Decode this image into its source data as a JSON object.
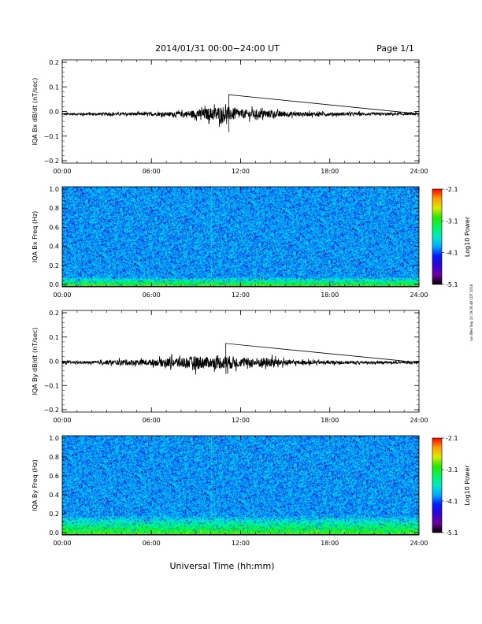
{
  "header": {
    "title": "2014/01/31  00:00−24:00 UT",
    "page": "Page 1/1"
  },
  "footer": {
    "xlabel": "Universal Time (hh:mm)",
    "stamp": "run Wed Sep 10 19:26:48 CDT 2018"
  },
  "chart_data": [
    {
      "type": "line",
      "ylabel": "IQA Bx dB/dt (nT/sec)",
      "x_ticks": [
        "00:00",
        "06:00",
        "12:00",
        "18:00",
        "24:00"
      ],
      "xlim": [
        0,
        24
      ],
      "ylim": [
        -0.2,
        0.2
      ],
      "y_ticks": [
        "0.2",
        "0.1",
        "0.0",
        "−0.1",
        "−0.2"
      ],
      "series": [
        {
          "baseline": -0.01,
          "envelope_hours": [
            0,
            2,
            4,
            6,
            7,
            8,
            9,
            10,
            10.5,
            11,
            11.5,
            12,
            13,
            14,
            15,
            16,
            18,
            20,
            24
          ],
          "envelope_amp": [
            0.008,
            0.009,
            0.01,
            0.012,
            0.013,
            0.018,
            0.03,
            0.045,
            0.055,
            0.055,
            0.042,
            0.032,
            0.03,
            0.025,
            0.02,
            0.015,
            0.012,
            0.01,
            0.008
          ],
          "peak": {
            "hour": 11.2,
            "max": 0.065,
            "min": -0.08
          }
        }
      ]
    },
    {
      "type": "heatmap",
      "ylabel": "IQA Bx Freq (Hz)",
      "x_ticks": [
        "00:00",
        "06:00",
        "12:00",
        "18:00",
        "24:00"
      ],
      "xlim": [
        0,
        24
      ],
      "ylim": [
        0,
        1
      ],
      "y_ticks": [
        "1.0",
        "0.8",
        "0.6",
        "0.4",
        "0.2",
        "0.0"
      ],
      "colorbar": {
        "label": "Log10 Power",
        "ticks": [
          "-2.1",
          "-3.1",
          "-4.1",
          "-5.1"
        ],
        "range": [
          -5.1,
          -2.1
        ]
      },
      "background_log_power": -3.9,
      "low_freq_enhancement": {
        "freq_below_hz": 0.1,
        "max_log_power": -2.7
      },
      "vertical_stripe_hour": 10
    },
    {
      "type": "line",
      "ylabel": "IQA By dB/dt (nT/sec)",
      "x_ticks": [
        "00:00",
        "06:00",
        "12:00",
        "18:00",
        "24:00"
      ],
      "xlim": [
        0,
        24
      ],
      "ylim": [
        -0.2,
        0.2
      ],
      "y_ticks": [
        "0.2",
        "0.1",
        "0.0",
        "−0.1",
        "−0.2"
      ],
      "series": [
        {
          "baseline": -0.005,
          "envelope_hours": [
            0,
            2,
            3,
            4,
            5,
            6,
            7,
            8,
            8.5,
            9,
            9.5,
            10,
            11,
            11.5,
            12,
            13,
            14,
            15,
            16,
            18,
            20,
            24
          ],
          "envelope_amp": [
            0.009,
            0.01,
            0.015,
            0.02,
            0.02,
            0.02,
            0.03,
            0.04,
            0.04,
            0.05,
            0.045,
            0.035,
            0.05,
            0.045,
            0.03,
            0.035,
            0.035,
            0.02,
            0.015,
            0.012,
            0.01,
            0.008
          ],
          "peak": {
            "hour": 11.0,
            "max": 0.07,
            "min": -0.05
          }
        }
      ]
    },
    {
      "type": "heatmap",
      "ylabel": "IQA By Freq (Hz)",
      "x_ticks": [
        "00:00",
        "06:00",
        "12:00",
        "18:00",
        "24:00"
      ],
      "xlim": [
        0,
        24
      ],
      "ylim": [
        0,
        1
      ],
      "y_ticks": [
        "1.0",
        "0.8",
        "0.6",
        "0.4",
        "0.2",
        "0.0"
      ],
      "colorbar": {
        "label": "Log10 Power",
        "ticks": [
          "-2.1",
          "-3.1",
          "-4.1",
          "-5.1"
        ],
        "range": [
          -5.1,
          -2.1
        ]
      },
      "background_log_power": -3.9,
      "low_freq_enhancement": {
        "freq_below_hz": 0.2,
        "max_log_power": -2.8
      },
      "vertical_stripe_hour": 10
    }
  ]
}
